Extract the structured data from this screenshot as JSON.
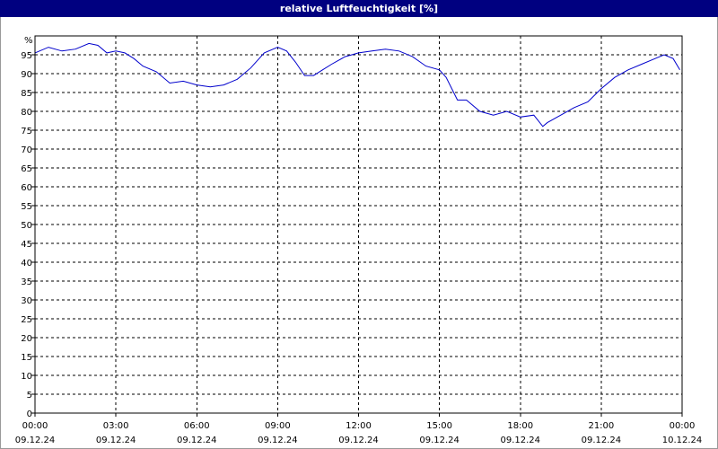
{
  "chart_data": {
    "type": "line",
    "title": "relative Luftfeuchtigkeit [%]",
    "ylabel": "%",
    "ylim": [
      0,
      100
    ],
    "yticks": [
      0,
      5,
      10,
      15,
      20,
      25,
      30,
      35,
      40,
      45,
      50,
      55,
      60,
      65,
      70,
      75,
      80,
      85,
      90,
      95
    ],
    "xlim": [
      "09.12.24 00:00",
      "10.12.24 00:00"
    ],
    "xticks": [
      {
        "time": "00:00",
        "date": "09.12.24"
      },
      {
        "time": "03:00",
        "date": "09.12.24"
      },
      {
        "time": "06:00",
        "date": "09.12.24"
      },
      {
        "time": "09:00",
        "date": "09.12.24"
      },
      {
        "time": "12:00",
        "date": "09.12.24"
      },
      {
        "time": "15:00",
        "date": "09.12.24"
      },
      {
        "time": "18:00",
        "date": "09.12.24"
      },
      {
        "time": "21:00",
        "date": "09.12.24"
      },
      {
        "time": "00:00",
        "date": "10.12.24"
      }
    ],
    "grid": true,
    "line_color": "#0000cc",
    "series": [
      {
        "x": [
          "00:00",
          "00:30",
          "01:00",
          "01:30",
          "02:00",
          "02:20",
          "02:40",
          "03:00",
          "03:20",
          "03:40",
          "04:00",
          "04:30",
          "05:00",
          "05:30",
          "06:00",
          "06:30",
          "07:00",
          "07:30",
          "08:00",
          "08:30",
          "09:00",
          "09:20",
          "09:40",
          "10:00",
          "10:20",
          "10:40",
          "11:00",
          "11:30",
          "12:00",
          "12:30",
          "13:00",
          "13:30",
          "14:00",
          "14:30",
          "15:00",
          "15:15",
          "15:40",
          "16:00",
          "16:30",
          "17:00",
          "17:30",
          "18:00",
          "18:30",
          "18:50",
          "19:00",
          "19:30",
          "20:00",
          "20:30",
          "21:00",
          "21:30",
          "22:00",
          "22:30",
          "23:00",
          "23:20",
          "23:40",
          "23:55"
        ],
        "values": [
          95.5,
          97,
          96,
          96.5,
          98,
          97.5,
          95.5,
          96,
          95.5,
          94,
          92,
          90.5,
          87.5,
          88,
          87,
          86.5,
          87,
          88.5,
          91.5,
          95.5,
          97,
          96,
          93,
          89.5,
          89.5,
          91,
          92.5,
          94.5,
          95.5,
          96,
          96.5,
          96,
          94.5,
          92,
          91,
          89,
          83,
          83,
          80,
          79,
          80,
          78.5,
          79,
          76,
          77,
          79,
          81,
          82.5,
          86,
          89,
          91,
          92.5,
          94,
          95,
          94,
          91
        ]
      }
    ]
  }
}
